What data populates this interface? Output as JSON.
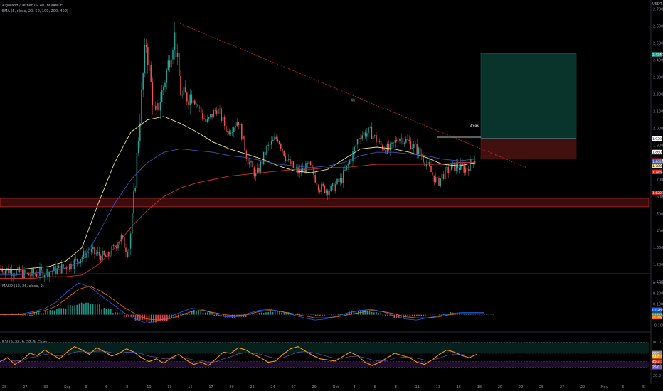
{
  "header": {
    "symbol": "Algorand / TetherUS, 4h, BINANCE",
    "ema_legend": "EMA (5, close, 20, 50, 100, 200, 400)",
    "currency": "USDT"
  },
  "chart_data": [
    {
      "type": "candlestick",
      "title": "Algorand / TetherUS, 4h, BINANCE",
      "price_axis": {
        "ticks": [
          "2.7000",
          "2.6000",
          "2.5000",
          "2.4000",
          "2.3000",
          "2.2000",
          "2.1000",
          "2.0000",
          "1.9000",
          "1.8000",
          "1.7000",
          "1.6000",
          "1.5000",
          "1.4000",
          "1.3000",
          "1.2000",
          "1.1000"
        ],
        "ylim": [
          1.16,
          2.72
        ]
      },
      "time_axis": {
        "ticks": [
          "25",
          "27",
          "30",
          "Sep",
          "3",
          "6",
          "8",
          "10",
          "13",
          "15",
          "17",
          "20",
          "22",
          "24",
          "27",
          "29",
          "Oct",
          "4",
          "6",
          "8",
          "11",
          "13",
          "15",
          "18",
          "20",
          "22",
          "25",
          "27",
          "29",
          "Nov",
          "3",
          "5"
        ]
      },
      "close_points": [
        {
          "t": 0,
          "c": 1.18
        },
        {
          "t": 40,
          "c": 1.14
        },
        {
          "t": 80,
          "c": 1.17
        },
        {
          "t": 100,
          "c": 1.2
        },
        {
          "t": 125,
          "c": 1.28
        },
        {
          "t": 150,
          "c": 1.24
        },
        {
          "t": 170,
          "c": 1.36
        },
        {
          "t": 180,
          "c": 1.27
        },
        {
          "t": 186,
          "c": 1.46
        },
        {
          "t": 194,
          "c": 1.92
        },
        {
          "t": 205,
          "c": 2.52
        },
        {
          "t": 218,
          "c": 2.05
        },
        {
          "t": 230,
          "c": 2.25
        },
        {
          "t": 245,
          "c": 2.55
        },
        {
          "t": 255,
          "c": 2.18
        },
        {
          "t": 270,
          "c": 2.2
        },
        {
          "t": 290,
          "c": 2.03
        },
        {
          "t": 305,
          "c": 2.12
        },
        {
          "t": 320,
          "c": 1.98
        },
        {
          "t": 335,
          "c": 2.05
        },
        {
          "t": 348,
          "c": 1.82
        },
        {
          "t": 360,
          "c": 1.72
        },
        {
          "t": 375,
          "c": 1.88
        },
        {
          "t": 390,
          "c": 1.95
        },
        {
          "t": 405,
          "c": 1.8
        },
        {
          "t": 420,
          "c": 1.74
        },
        {
          "t": 435,
          "c": 1.78
        },
        {
          "t": 450,
          "c": 1.65
        },
        {
          "t": 465,
          "c": 1.64
        },
        {
          "t": 480,
          "c": 1.7
        },
        {
          "t": 495,
          "c": 1.84
        },
        {
          "t": 505,
          "c": 1.96
        },
        {
          "t": 520,
          "c": 1.98
        },
        {
          "t": 535,
          "c": 1.9
        },
        {
          "t": 548,
          "c": 1.87
        },
        {
          "t": 560,
          "c": 1.95
        },
        {
          "t": 575,
          "c": 1.92
        },
        {
          "t": 590,
          "c": 1.86
        },
        {
          "t": 605,
          "c": 1.75
        },
        {
          "t": 615,
          "c": 1.68
        },
        {
          "t": 625,
          "c": 1.74
        },
        {
          "t": 640,
          "c": 1.78
        },
        {
          "t": 655,
          "c": 1.76
        },
        {
          "t": 668,
          "c": 1.83
        }
      ],
      "series": [
        {
          "name": "EMA 20",
          "color": "#f0e68c",
          "values": [
            1.17,
            1.17,
            1.18,
            1.19,
            1.22,
            1.3,
            1.56,
            1.8,
            1.98,
            2.05,
            2.07,
            2.03,
            1.98,
            1.92,
            1.88,
            1.85,
            1.82,
            1.78,
            1.75,
            1.74,
            1.76,
            1.82,
            1.88,
            1.89,
            1.88,
            1.86,
            1.83,
            1.79,
            1.78,
            1.8
          ]
        },
        {
          "name": "EMA 100",
          "color": "#3f51b5",
          "values": [
            1.14,
            1.14,
            1.15,
            1.16,
            1.18,
            1.22,
            1.38,
            1.56,
            1.7,
            1.8,
            1.86,
            1.88,
            1.87,
            1.86,
            1.84,
            1.83,
            1.81,
            1.79,
            1.78,
            1.77,
            1.78,
            1.8,
            1.84,
            1.86,
            1.86,
            1.85,
            1.84,
            1.82,
            1.81,
            1.82
          ]
        },
        {
          "name": "EMA 200",
          "color": "#d32f2f",
          "values": [
            1.12,
            1.12,
            1.12,
            1.13,
            1.13,
            1.14,
            1.2,
            1.3,
            1.42,
            1.52,
            1.6,
            1.65,
            1.68,
            1.7,
            1.72,
            1.73,
            1.74,
            1.75,
            1.76,
            1.76,
            1.77,
            1.77,
            1.78,
            1.79,
            1.79,
            1.79,
            1.79,
            1.79,
            1.8,
            1.8
          ]
        }
      ],
      "annotations": {
        "break_label": "Break",
        "wave_label": "4b",
        "long_entry": 1.94,
        "long_target": 2.44,
        "long_stop": 1.82,
        "support_zone": [
          1.54,
          1.59
        ],
        "trendline": {
          "t0": 250,
          "p0": 2.62,
          "t1": 740,
          "p1": 1.77
        }
      },
      "price_tags": [
        {
          "text": "2.4340",
          "color": "#26a69a"
        },
        {
          "text": "1.9396",
          "color": "#ffffff"
        },
        {
          "text": "1.8609",
          "color": "#ffffff"
        },
        {
          "text": "1.8124",
          "color": "#b71c1c"
        },
        {
          "text": "1.8048",
          "color": "#3f51b5"
        },
        {
          "text": "1.7808",
          "color": "#f0e68c"
        },
        {
          "text": "1.7450",
          "color": "#d32f2f"
        },
        {
          "text": "1.6208",
          "color": "#b71c1c"
        }
      ]
    },
    {
      "type": "bar",
      "title": "MACD (12, 26, close, 9)",
      "ticks": [
        "0.3000",
        "0.2000",
        "0.1000",
        "0.0000",
        "-0.1000"
      ],
      "ylim": [
        -0.13,
        0.34
      ],
      "histogram": [
        0.0,
        0.01,
        -0.01,
        0.02,
        0.04,
        0.06,
        0.09,
        0.11,
        0.1,
        0.06,
        0.02,
        -0.02,
        -0.05,
        -0.07,
        -0.06,
        -0.03,
        0.01,
        0.04,
        0.02,
        -0.01,
        -0.03,
        -0.02,
        0.0,
        0.02,
        0.03,
        0.02,
        0.01,
        0.0,
        -0.01,
        0.0,
        0.01,
        0.03,
        0.04,
        0.02,
        -0.01,
        -0.03,
        -0.02,
        -0.01,
        0.0,
        0.01,
        0.02,
        0.01,
        0.0,
        0.0
      ],
      "series": [
        {
          "name": "MACD",
          "color": "#2962ff",
          "values": [
            0.0,
            0.0,
            0.01,
            0.03,
            0.06,
            0.12,
            0.22,
            0.3,
            0.26,
            0.18,
            0.1,
            0.02,
            -0.04,
            -0.08,
            -0.06,
            -0.02,
            0.02,
            0.06,
            0.05,
            0.01,
            -0.02,
            -0.02,
            0.01,
            0.04,
            0.05,
            0.03,
            0.0,
            -0.03,
            -0.05,
            -0.04,
            -0.01,
            0.02,
            0.04,
            0.05,
            0.03,
            -0.01,
            -0.04,
            -0.05,
            -0.03,
            -0.01,
            0.01,
            0.02,
            0.02,
            0.02
          ]
        },
        {
          "name": "Signal",
          "color": "#ff6d00",
          "values": [
            0.0,
            0.0,
            0.0,
            0.02,
            0.04,
            0.08,
            0.16,
            0.24,
            0.27,
            0.22,
            0.15,
            0.07,
            0.01,
            -0.04,
            -0.05,
            -0.04,
            -0.01,
            0.03,
            0.04,
            0.02,
            0.0,
            -0.01,
            0.0,
            0.03,
            0.04,
            0.03,
            0.01,
            -0.01,
            -0.03,
            -0.03,
            -0.02,
            0.0,
            0.02,
            0.04,
            0.03,
            0.01,
            -0.02,
            -0.03,
            -0.03,
            -0.02,
            0.0,
            0.01,
            0.01,
            0.01
          ]
        }
      ],
      "tags": [
        {
          "text": "0.0265",
          "color": "#2962ff"
        },
        {
          "text": "0.0000",
          "color": "#26a69a"
        },
        {
          "text": "-0.0026",
          "color": "#ff6d00"
        }
      ]
    },
    {
      "type": "line",
      "title": "RSI (5, 35, 6, 30, 9, Close)",
      "ticks": [
        "80.0",
        "60.0",
        "40.0",
        "20.0"
      ],
      "ylim": [
        10,
        92
      ],
      "levels": {
        "upper": 80,
        "upper_mid": 60,
        "lower_mid": 45,
        "lower": 35
      },
      "series": [
        {
          "name": "RSI",
          "color": "#ff9800",
          "values": [
            45,
            52,
            40,
            48,
            60,
            56,
            66,
            58,
            50,
            62,
            72,
            66,
            58,
            70,
            63,
            55,
            60,
            68,
            62,
            52,
            45,
            50,
            42,
            52,
            58,
            48,
            40,
            44,
            38,
            50,
            62,
            60,
            70,
            66,
            58,
            52,
            44,
            46,
            58,
            68,
            72,
            64,
            56,
            50,
            48,
            46,
            54,
            62,
            56,
            44,
            38,
            44,
            52,
            60,
            56,
            52,
            44,
            40,
            48,
            58,
            66,
            62,
            56,
            52,
            58
          ]
        },
        {
          "name": "Signal",
          "color": "#7e57c2",
          "values": [
            46,
            48,
            46,
            47,
            52,
            54,
            58,
            57,
            55,
            57,
            62,
            64,
            62,
            64,
            64,
            61,
            60,
            62,
            62,
            59,
            55,
            53,
            50,
            50,
            52,
            51,
            48,
            47,
            44,
            45,
            50,
            54,
            59,
            61,
            60,
            58,
            54,
            51,
            52,
            57,
            62,
            63,
            61,
            58,
            54,
            51,
            51,
            54,
            55,
            52,
            48,
            46,
            47,
            51,
            53,
            53,
            51,
            48,
            48,
            51,
            56,
            58,
            58,
            56,
            57
          ]
        }
      ],
      "tags": [
        {
          "text": "60.5",
          "color": "#8e8e8e"
        },
        {
          "text": "54.0",
          "color": "#ff9800"
        },
        {
          "text": "45.3",
          "color": "#e53935"
        },
        {
          "text": "35.0",
          "color": "#7e57c2"
        }
      ]
    }
  ]
}
